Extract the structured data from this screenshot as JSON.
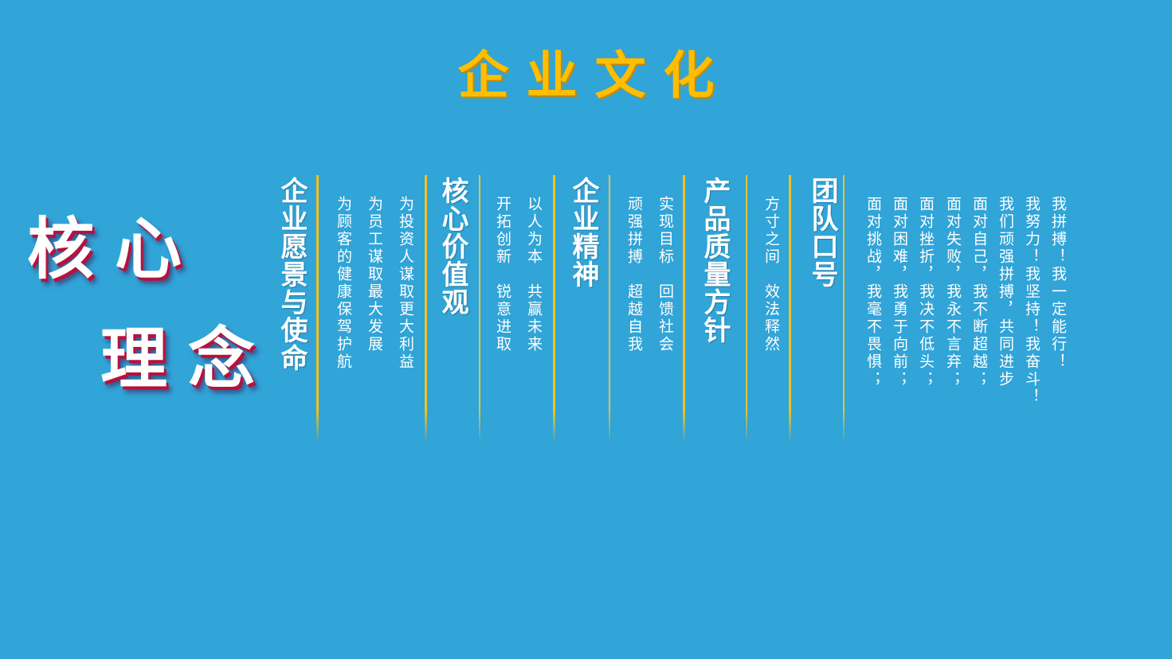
{
  "title": "企业文化",
  "core": {
    "line1": "核心",
    "line2": "理念"
  },
  "sections": [
    {
      "heading": "企业愿景与使命",
      "lines": [
        "为投资人谋取更大利益",
        "为员工谋取最大发展",
        "为顾客的健康保驾护航"
      ]
    },
    {
      "heading": "核心价值观",
      "lines": [
        "以人为本　共赢未来",
        "开拓创新　锐意进取"
      ]
    },
    {
      "heading": "企业精神",
      "lines": [
        "实现目标　回馈社会",
        "顽强拼搏　超越自我"
      ]
    },
    {
      "heading": "产品质量方针",
      "lines": [
        "方寸之间　效法释然"
      ]
    },
    {
      "heading": "团队口号",
      "lines": [
        "我拼搏！我一定能行！",
        "我努力！我坚持！我奋斗！",
        "我们顽强拼搏，共同进步",
        "面对自己，我不断超越；",
        "面对失败，我永不言弃；",
        "面对挫折，我决不低头；",
        "面对困难，我勇于向前；",
        "面对挑战，我毫不畏惧；"
      ]
    }
  ],
  "colors": {
    "background": "#31a4d8",
    "title": "#ffbe00",
    "divider": "#f3c21a",
    "text": "#ffffff",
    "shadow": "#b5123d"
  }
}
